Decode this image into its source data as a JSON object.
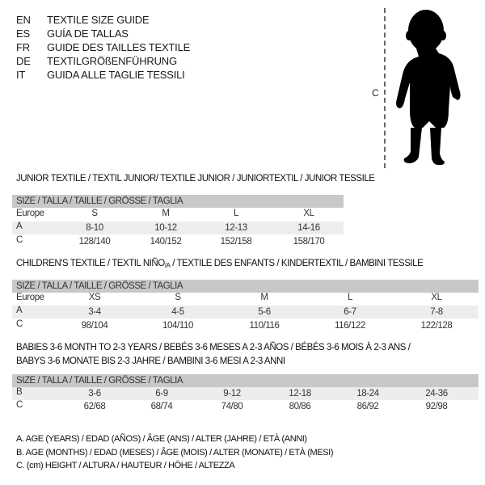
{
  "languages": [
    {
      "code": "EN",
      "title": "TEXTILE SIZE GUIDE"
    },
    {
      "code": "ES",
      "title": "GUÍA DE TALLAS"
    },
    {
      "code": "FR",
      "title": "GUIDE DES TAILLES TEXTILE"
    },
    {
      "code": "DE",
      "title": "TEXTILGRÖßENFÜHRUNG"
    },
    {
      "code": "IT",
      "title": "GUIDA ALLE TAGLIE TESSILI"
    }
  ],
  "figure": {
    "measure_label": "C"
  },
  "junior": {
    "title": "JUNIOR TEXTILE / TEXTIL JUNIOR/ TEXTILE JUNIOR / JUNIORTEXTIL / JUNIOR TESSILE",
    "header": "SIZE / TALLA / TAILLE / GRÖSSE / TAGLIA",
    "rows": [
      {
        "label": "Europe",
        "values": [
          "S",
          "M",
          "L",
          "XL"
        ]
      },
      {
        "label": "A",
        "values": [
          "8-10",
          "10-12",
          "12-13",
          "14-16"
        ]
      },
      {
        "label": "C",
        "values": [
          "128/140",
          "140/152",
          "152/158",
          "158/170"
        ]
      }
    ]
  },
  "children": {
    "title_a": "CHILDREN'S TEXTILE / TEXTIL NIÑO",
    "title_sub": "/A",
    "title_b": " / TEXTILE DES ENFANTS / KINDERTEXTIL / BAMBINI TESSILE",
    "header": "SIZE / TALLA / TAILLE / GRÖSSE / TAGLIA",
    "rows": [
      {
        "label": "Europe",
        "values": [
          "XS",
          "S",
          "M",
          "L",
          "XL"
        ]
      },
      {
        "label": "A",
        "values": [
          "3-4",
          "4-5",
          "5-6",
          "6-7",
          "7-8"
        ]
      },
      {
        "label": "C",
        "values": [
          "98/104",
          "104/110",
          "110/116",
          "116/122",
          "122/128"
        ]
      }
    ]
  },
  "babies": {
    "title_line1": "BABIES 3-6 MONTH TO 2-3 YEARS / BEBÉS 3-6 MESES A 2-3 AÑOS / BÉBÉS 3-6 MOIS À 2-3 ANS /",
    "title_line2": "BABYS 3-6 MONATE BIS 2-3 JAHRE / BAMBINI 3-6 MESI A 2-3 ANNI",
    "header": "SIZE / TALLA / TAILLE / GRÖSSE / TAGLIA",
    "rows": [
      {
        "label": "B",
        "values": [
          "3-6",
          "6-9",
          "9-12",
          "12-18",
          "18-24",
          "24-36"
        ]
      },
      {
        "label": "C",
        "values": [
          "62/68",
          "68/74",
          "74/80",
          "80/86",
          "86/92",
          "92/98"
        ]
      }
    ]
  },
  "legend": [
    "A. AGE (YEARS) / EDAD (AÑOS) / ÂGE (ANS) / ALTER (JAHRE) / ETÀ (ANNI)",
    "B. AGE (MONTHS) / EDAD (MESES) / ÂGE (MOIS) / ALTER (MONATE) / ETÀ (MESI)",
    "C. (cm) HEIGHT / ALTURA / HAUTEUR / HÖHE / ALTEZZA"
  ]
}
